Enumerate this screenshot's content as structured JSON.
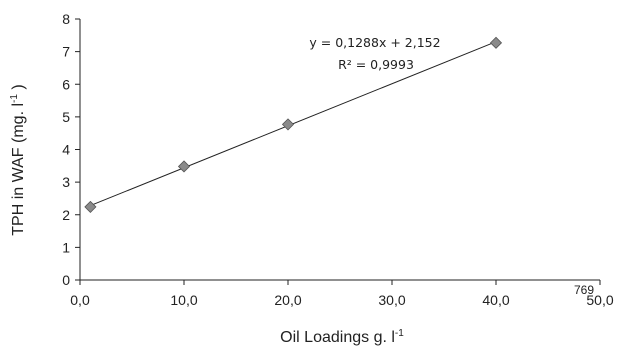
{
  "chart_data": {
    "type": "scatter",
    "x": [
      1.0,
      10.0,
      20.0,
      40.0
    ],
    "y": [
      2.24,
      3.48,
      4.77,
      7.27
    ],
    "xlim": [
      0,
      50
    ],
    "ylim": [
      0,
      8
    ],
    "xticks": [
      "0,0",
      "10,0",
      "20,0",
      "30,0",
      "40,0",
      "50,0"
    ],
    "yticks": [
      "0",
      "1",
      "2",
      "3",
      "4",
      "5",
      "6",
      "7",
      "8"
    ],
    "xlabel": "Oil Loadings g. l",
    "xlabel_sup": "-1",
    "ylabel": "TPH in WAF (mg. l",
    "ylabel_sup": "-1",
    "ylabel_close": " )",
    "trendline": {
      "slope": 0.1288,
      "intercept": 2.152,
      "x_start": 1.0,
      "x_end": 40.0
    },
    "equation": "y = 0,1288x + 2,152",
    "r_squared": "R² = 0,9993",
    "marker": "diamond",
    "marker_color": "#8a8a8a",
    "line_color": "#222222",
    "grid": false,
    "legend": "none",
    "stray_label": "769"
  }
}
